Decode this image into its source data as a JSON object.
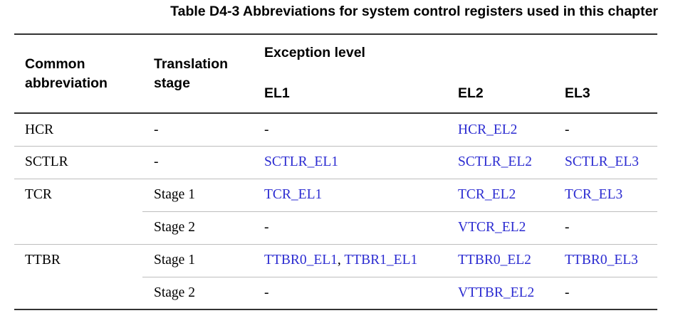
{
  "caption": "Table D4-3 Abbreviations for system control registers used in this chapter",
  "header": {
    "col1_line1": "Common",
    "col1_line2": "abbreviation",
    "col2_line1": "Translation",
    "col2_line2": "stage",
    "group": "Exception level",
    "el1": "EL1",
    "el2": "EL2",
    "el3": "EL3"
  },
  "rows": [
    {
      "abbr": "HCR",
      "stage": "-",
      "el1": "-",
      "el2": "HCR_EL2",
      "el3": "-"
    },
    {
      "abbr": "SCTLR",
      "stage": "-",
      "el1": "SCTLR_EL1",
      "el2": "SCTLR_EL2",
      "el3": "SCTLR_EL3"
    },
    {
      "abbr": "TCR",
      "stage": "Stage 1",
      "el1": "TCR_EL1",
      "el2": "TCR_EL2",
      "el3": "TCR_EL3"
    },
    {
      "abbr": "",
      "stage": "Stage 2",
      "el1": "-",
      "el2": "VTCR_EL2",
      "el3": "-"
    },
    {
      "abbr": "TTBR",
      "stage": "Stage 1",
      "el1_a": "TTBR0_EL1",
      "el1_sep": ", ",
      "el1_b": "TTBR1_EL1",
      "el2": "TTBR0_EL2",
      "el3": "TTBR0_EL3"
    },
    {
      "abbr": "",
      "stage": "Stage 2",
      "el1": "-",
      "el2": "VTTBR_EL2",
      "el3": "-"
    }
  ]
}
